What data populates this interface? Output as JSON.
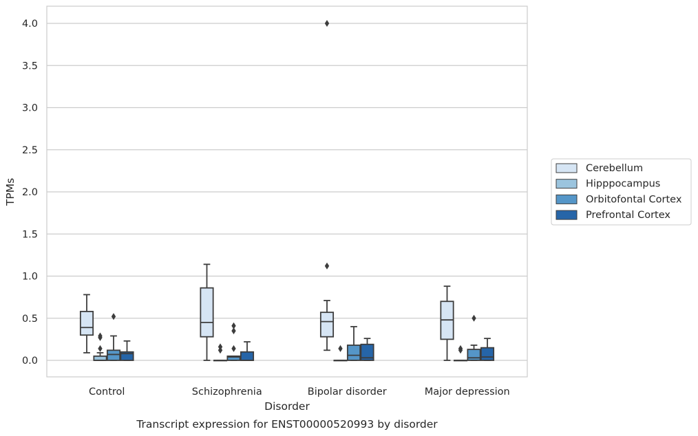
{
  "chart_data": {
    "type": "box",
    "caption": "Transcript expression for ENST00000520993 by disorder",
    "xlabel": "Disorder",
    "ylabel": "TPMs",
    "ylim": [
      -0.19,
      4.2
    ],
    "yticks": [
      "0.0",
      "0.5",
      "1.0",
      "1.5",
      "2.0",
      "2.5",
      "3.0",
      "3.5",
      "4.0"
    ],
    "grid": "horizontal",
    "legend_position": "right",
    "categories": [
      "Control",
      "Schizophrenia",
      "Bipolar disorder",
      "Major depression"
    ],
    "series": [
      {
        "name": "Cerebellum",
        "color": "#d6e5f4",
        "boxes": [
          {
            "whisker_low": 0.09,
            "q1": 0.3,
            "median": 0.39,
            "q3": 0.58,
            "whisker_high": 0.78,
            "outliers": []
          },
          {
            "whisker_low": 0.0,
            "q1": 0.28,
            "median": 0.45,
            "q3": 0.86,
            "whisker_high": 1.14,
            "outliers": []
          },
          {
            "whisker_low": 0.12,
            "q1": 0.28,
            "median": 0.46,
            "q3": 0.57,
            "whisker_high": 0.71,
            "outliers": [
              1.12,
              4.0
            ]
          },
          {
            "whisker_low": 0.0,
            "q1": 0.25,
            "median": 0.48,
            "q3": 0.7,
            "whisker_high": 0.88,
            "outliers": []
          }
        ]
      },
      {
        "name": "Hipppocampus",
        "color": "#9bc4de",
        "boxes": [
          {
            "whisker_low": 0.0,
            "q1": 0.0,
            "median": 0.0,
            "q3": 0.05,
            "whisker_high": 0.09,
            "outliers": [
              0.14,
              0.27,
              0.29
            ]
          },
          {
            "whisker_low": 0.0,
            "q1": 0.0,
            "median": 0.0,
            "q3": 0.0,
            "whisker_high": 0.0,
            "outliers": [
              0.12,
              0.16
            ]
          },
          {
            "whisker_low": 0.0,
            "q1": 0.0,
            "median": 0.0,
            "q3": 0.0,
            "whisker_high": 0.0,
            "outliers": [
              0.14
            ]
          },
          {
            "whisker_low": 0.0,
            "q1": 0.0,
            "median": 0.0,
            "q3": 0.0,
            "whisker_high": 0.0,
            "outliers": [
              0.12,
              0.14
            ]
          }
        ]
      },
      {
        "name": "Orbitofontal Cortex",
        "color": "#5596c8",
        "boxes": [
          {
            "whisker_low": 0.0,
            "q1": 0.0,
            "median": 0.07,
            "q3": 0.12,
            "whisker_high": 0.29,
            "outliers": [
              0.52
            ]
          },
          {
            "whisker_low": 0.0,
            "q1": 0.0,
            "median": 0.04,
            "q3": 0.05,
            "whisker_high": 0.05,
            "outliers": [
              0.14,
              0.35,
              0.41
            ]
          },
          {
            "whisker_low": 0.0,
            "q1": 0.0,
            "median": 0.06,
            "q3": 0.18,
            "whisker_high": 0.4,
            "outliers": []
          },
          {
            "whisker_low": 0.0,
            "q1": 0.0,
            "median": 0.03,
            "q3": 0.13,
            "whisker_high": 0.18,
            "outliers": [
              0.5
            ]
          }
        ]
      },
      {
        "name": "Prefrontal Cortex",
        "color": "#2665a8",
        "boxes": [
          {
            "whisker_low": 0.0,
            "q1": 0.0,
            "median": 0.08,
            "q3": 0.1,
            "whisker_high": 0.23,
            "outliers": []
          },
          {
            "whisker_low": 0.0,
            "q1": 0.0,
            "median": 0.0,
            "q3": 0.1,
            "whisker_high": 0.22,
            "outliers": []
          },
          {
            "whisker_low": 0.0,
            "q1": 0.0,
            "median": 0.03,
            "q3": 0.19,
            "whisker_high": 0.26,
            "outliers": []
          },
          {
            "whisker_low": 0.0,
            "q1": 0.0,
            "median": 0.04,
            "q3": 0.15,
            "whisker_high": 0.26,
            "outliers": []
          }
        ]
      }
    ]
  }
}
